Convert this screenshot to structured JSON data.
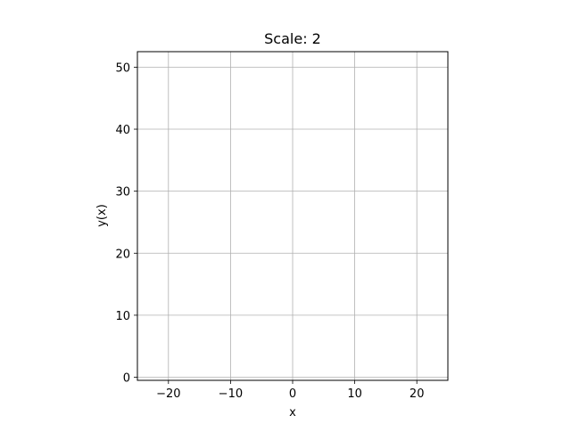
{
  "chart_data": {
    "type": "line",
    "title": "Scale: 2",
    "xlabel": "x",
    "ylabel": "y(x)",
    "xlim": [
      -25,
      25
    ],
    "ylim": [
      -0.5,
      52.5
    ],
    "x_ticks": [
      -20,
      -10,
      0,
      10,
      20
    ],
    "x_tick_labels": [
      "−20",
      "−10",
      "0",
      "10",
      "20"
    ],
    "y_ticks": [
      0,
      10,
      20,
      30,
      40,
      50
    ],
    "y_tick_labels": [
      "0",
      "10",
      "20",
      "30",
      "40",
      "50"
    ],
    "grid": true,
    "series": []
  }
}
